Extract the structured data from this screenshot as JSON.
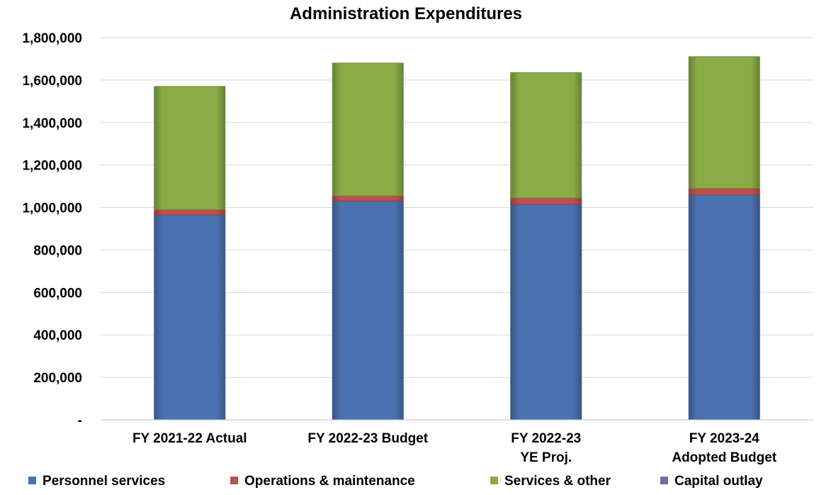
{
  "chart_data": {
    "type": "bar",
    "stacked": true,
    "title": "Administration Expenditures",
    "xlabel": "",
    "ylabel": "",
    "ylim": [
      0,
      1800000
    ],
    "yticks": [
      0,
      200000,
      400000,
      600000,
      800000,
      1000000,
      1200000,
      1400000,
      1600000,
      1800000
    ],
    "ytick_labels": [
      "-",
      "200,000",
      "400,000",
      "600,000",
      "800,000",
      "1,000,000",
      "1,200,000",
      "1,400,000",
      "1,600,000",
      "1,800,000"
    ],
    "categories": [
      [
        "FY 2021-22 Actual"
      ],
      [
        "FY 2022-23 Budget"
      ],
      [
        "FY 2022-23",
        "YE Proj."
      ],
      [
        "FY 2023-24",
        "Adopted Budget"
      ]
    ],
    "series": [
      {
        "name": "Personnel services",
        "color": "#4a72b0",
        "values": [
          965000,
          1030000,
          1015000,
          1060000
        ]
      },
      {
        "name": "Operations & maintenance",
        "color": "#c0504d",
        "values": [
          25000,
          25000,
          30000,
          30000
        ]
      },
      {
        "name": "Services & other",
        "color": "#8aac47",
        "values": [
          580000,
          625000,
          590000,
          620000
        ]
      },
      {
        "name": "Capital outlay",
        "color": "#7f63a2",
        "values": [
          0,
          0,
          0,
          0
        ]
      }
    ],
    "grid": true,
    "legend_position": "bottom"
  }
}
